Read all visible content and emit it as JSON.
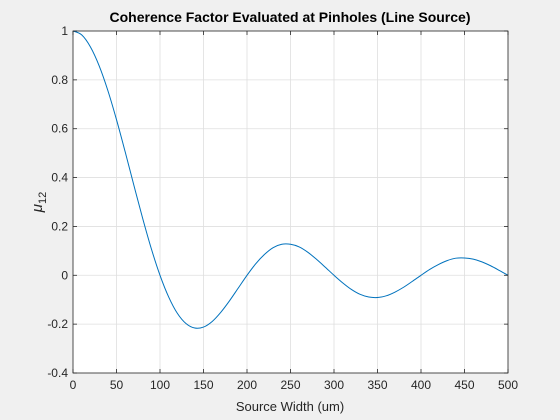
{
  "chart_data": {
    "type": "line",
    "title": "Coherence Factor Evaluated at Pinholes (Line Source)",
    "xlabel": "Source Width (um)",
    "ylabel": "μ",
    "ylabel_subscript": "12",
    "xlim": [
      0,
      500
    ],
    "ylim": [
      -0.4,
      1
    ],
    "xticks": [
      0,
      50,
      100,
      150,
      200,
      250,
      300,
      350,
      400,
      450,
      500
    ],
    "yticks": [
      -0.4,
      -0.2,
      0,
      0.2,
      0.4,
      0.6,
      0.8,
      1
    ],
    "ytick_labels": [
      "-0.4",
      "-0.2",
      "0",
      "0.2",
      "0.4",
      "0.6",
      "0.8",
      "1"
    ],
    "grid": true,
    "series": [
      {
        "color": "#0072bd",
        "x": [
          0,
          10,
          20,
          30,
          40,
          50,
          60,
          70,
          80,
          90,
          100,
          110,
          120,
          130,
          140,
          150,
          160,
          170,
          180,
          190,
          200,
          210,
          220,
          230,
          240,
          250,
          260,
          270,
          280,
          290,
          300,
          310,
          320,
          330,
          340,
          350,
          360,
          370,
          380,
          390,
          400,
          410,
          420,
          430,
          440,
          450,
          460,
          470,
          480,
          490,
          500
        ],
        "y": [
          1.0,
          0.984,
          0.935,
          0.858,
          0.757,
          0.637,
          0.505,
          0.368,
          0.234,
          0.109,
          0.0,
          -0.089,
          -0.156,
          -0.198,
          -0.216,
          -0.212,
          -0.189,
          -0.151,
          -0.104,
          -0.052,
          0.0,
          0.047,
          0.085,
          0.113,
          0.127,
          0.127,
          0.116,
          0.094,
          0.065,
          0.033,
          0.0,
          -0.031,
          -0.058,
          -0.078,
          -0.089,
          -0.091,
          -0.084,
          -0.069,
          -0.049,
          -0.025,
          0.0,
          0.024,
          0.044,
          0.06,
          0.07,
          0.071,
          0.066,
          0.055,
          0.039,
          0.02,
          0.0
        ]
      }
    ]
  }
}
